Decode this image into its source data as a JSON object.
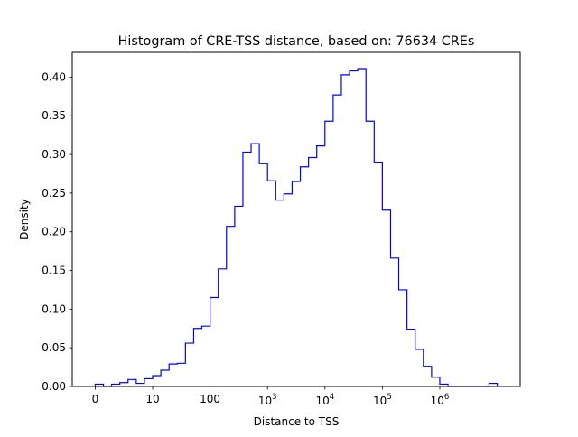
{
  "chart_data": {
    "type": "histogram",
    "title": "Histogram of CRE-TSS distance, based on: 76634 CREs",
    "xlabel": "Distance to TSS",
    "ylabel": "Density",
    "x_scale": "log10(distance+1)",
    "xlim": [
      -0.4,
      7.4
    ],
    "ylim": [
      0,
      0.432
    ],
    "grid": false,
    "legend": "none",
    "color": "#0000ff",
    "x_ticks": [
      {
        "value": 0,
        "label": "0"
      },
      {
        "value": 1,
        "label": "10"
      },
      {
        "value": 2,
        "label": "100"
      },
      {
        "value": 3,
        "base": "10",
        "exp": "3"
      },
      {
        "value": 4,
        "base": "10",
        "exp": "4"
      },
      {
        "value": 5,
        "base": "10",
        "exp": "5"
      },
      {
        "value": 6,
        "base": "10",
        "exp": "6"
      }
    ],
    "y_ticks": [
      "0.00",
      "0.05",
      "0.10",
      "0.15",
      "0.20",
      "0.25",
      "0.30",
      "0.35",
      "0.40"
    ],
    "bin_edges": [
      0.0,
      0.1429,
      0.2857,
      0.4286,
      0.5714,
      0.7143,
      0.8571,
      1.0,
      1.1429,
      1.2857,
      1.4286,
      1.5714,
      1.7143,
      1.8571,
      2.0,
      2.1429,
      2.2857,
      2.4286,
      2.5714,
      2.7143,
      2.8571,
      3.0,
      3.1429,
      3.2857,
      3.4286,
      3.5714,
      3.7143,
      3.8571,
      4.0,
      4.1429,
      4.2857,
      4.4286,
      4.5714,
      4.7143,
      4.8571,
      5.0,
      5.1429,
      5.2857,
      5.4286,
      5.5714,
      5.7143,
      5.8571,
      6.0,
      6.1429,
      6.2857,
      6.4286,
      6.5714,
      6.7143,
      6.8571,
      7.0
    ],
    "densities": [
      0.003,
      0.0,
      0.003,
      0.005,
      0.009,
      0.004,
      0.01,
      0.014,
      0.021,
      0.029,
      0.03,
      0.056,
      0.075,
      0.078,
      0.115,
      0.152,
      0.207,
      0.233,
      0.303,
      0.314,
      0.288,
      0.266,
      0.241,
      0.249,
      0.265,
      0.284,
      0.296,
      0.311,
      0.343,
      0.377,
      0.403,
      0.408,
      0.411,
      0.343,
      0.29,
      0.228,
      0.166,
      0.125,
      0.074,
      0.048,
      0.026,
      0.012,
      0.003,
      0.0,
      0.0,
      0.0,
      0.0,
      0.0,
      0.004
    ]
  }
}
